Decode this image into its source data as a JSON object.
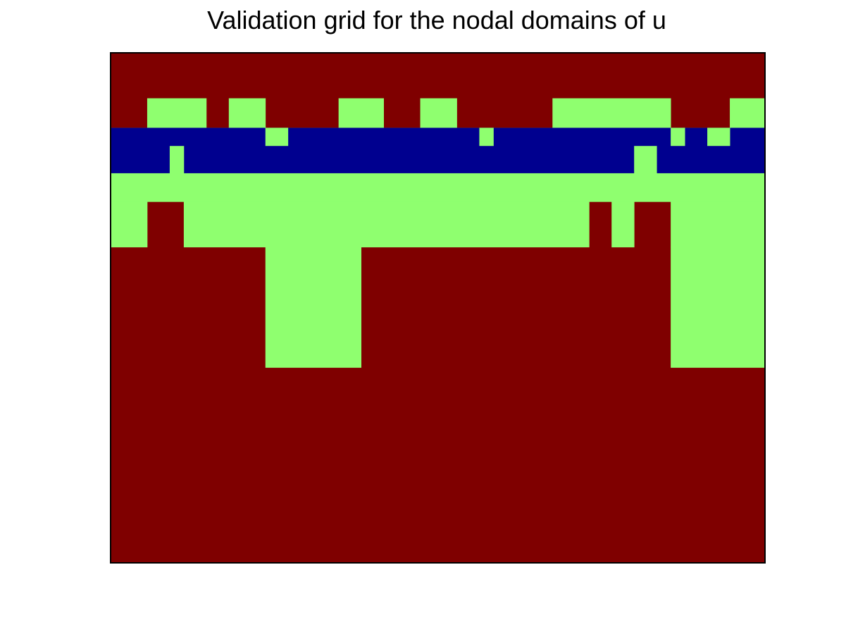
{
  "chart_data": {
    "type": "heatmap",
    "title": "Validation grid for the nodal domains of u",
    "xlabel": "",
    "ylabel": "",
    "grid": false,
    "legend": "none",
    "colors": {
      "background": "#7f0000",
      "green": "#8fff6f",
      "blue": "#00008f",
      "axes": "#000000"
    },
    "x_breaks": [
      0,
      52,
      104,
      136,
      168,
      220,
      252,
      324,
      388,
      440,
      492,
      524,
      544,
      628,
      680,
      712,
      744,
      776,
      796,
      816,
      848,
      880,
      930
    ],
    "y_breaks": [
      0,
      40,
      66,
      82,
      106,
      131,
      171,
      277,
      449
    ],
    "regions": [
      {
        "color": "green",
        "x": [
          52,
          136
        ],
        "y": [
          40,
          66
        ]
      },
      {
        "color": "green",
        "x": [
          168,
          220
        ],
        "y": [
          40,
          66
        ]
      },
      {
        "color": "green",
        "x": [
          324,
          388
        ],
        "y": [
          40,
          66
        ]
      },
      {
        "color": "green",
        "x": [
          440,
          492
        ],
        "y": [
          40,
          66
        ]
      },
      {
        "color": "green",
        "x": [
          628,
          796
        ],
        "y": [
          40,
          66
        ]
      },
      {
        "color": "green",
        "x": [
          880,
          930
        ],
        "y": [
          40,
          66
        ]
      },
      {
        "color": "green",
        "x": [
          0,
          930
        ],
        "y": [
          66,
          106
        ]
      },
      {
        "color": "blue",
        "x": [
          0,
          930
        ],
        "y": [
          66,
          82
        ]
      },
      {
        "color": "green",
        "x": [
          220,
          252
        ],
        "y": [
          66,
          82
        ]
      },
      {
        "color": "green",
        "x": [
          524,
          544
        ],
        "y": [
          66,
          82
        ]
      },
      {
        "color": "green",
        "x": [
          796,
          816
        ],
        "y": [
          66,
          82
        ]
      },
      {
        "color": "green",
        "x": [
          848,
          880
        ],
        "y": [
          66,
          82
        ]
      },
      {
        "color": "blue",
        "x": [
          0,
          930
        ],
        "y": [
          82,
          106
        ]
      },
      {
        "color": "green",
        "x": [
          84,
          104
        ],
        "y": [
          82,
          106
        ]
      },
      {
        "color": "green",
        "x": [
          744,
          776
        ],
        "y": [
          82,
          106
        ]
      },
      {
        "color": "green",
        "x": [
          0,
          930
        ],
        "y": [
          106,
          131
        ]
      },
      {
        "color": "green",
        "x": [
          0,
          52
        ],
        "y": [
          131,
          171
        ]
      },
      {
        "color": "green",
        "x": [
          104,
          680
        ],
        "y": [
          131,
          171
        ]
      },
      {
        "color": "green",
        "x": [
          712,
          744
        ],
        "y": [
          131,
          171
        ]
      },
      {
        "color": "green",
        "x": [
          796,
          930
        ],
        "y": [
          131,
          171
        ]
      },
      {
        "color": "green",
        "x": [
          220,
          356
        ],
        "y": [
          171,
          277
        ]
      },
      {
        "color": "green",
        "x": [
          796,
          930
        ],
        "y": [
          171,
          277
        ]
      }
    ]
  }
}
